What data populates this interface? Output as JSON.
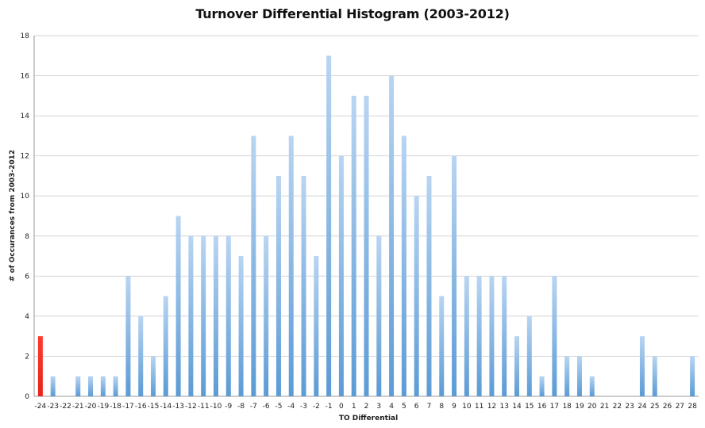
{
  "chart_data": {
    "type": "bar",
    "title": "Turnover Differential Histogram (2003-2012)",
    "xlabel": "TO Differential",
    "ylabel": "# of Occurances from 2003-2012",
    "ylim": [
      0,
      18
    ],
    "yticks": [
      0,
      2,
      4,
      6,
      8,
      10,
      12,
      14,
      16,
      18
    ],
    "grid": true,
    "legend": "none",
    "categories": [
      "-24",
      "-23",
      "-22",
      "-21",
      "-20",
      "-19",
      "-18",
      "-17",
      "-16",
      "-15",
      "-14",
      "-13",
      "-12",
      "-11",
      "-10",
      "-9",
      "-8",
      "-7",
      "-6",
      "-5",
      "-4",
      "-3",
      "-2",
      "-1",
      "0",
      "1",
      "2",
      "3",
      "4",
      "5",
      "6",
      "7",
      "8",
      "9",
      "10",
      "11",
      "12",
      "13",
      "14",
      "15",
      "16",
      "17",
      "18",
      "19",
      "20",
      "21",
      "22",
      "23",
      "24",
      "25",
      "26",
      "27",
      "28"
    ],
    "values": [
      3,
      1,
      0,
      1,
      1,
      1,
      1,
      6,
      4,
      2,
      5,
      9,
      8,
      8,
      8,
      8,
      7,
      13,
      8,
      11,
      13,
      11,
      7,
      17,
      12,
      15,
      15,
      8,
      16,
      13,
      10,
      11,
      5,
      12,
      6,
      6,
      6,
      6,
      3,
      4,
      1,
      6,
      2,
      2,
      1,
      0,
      0,
      0,
      3,
      2,
      0,
      0,
      2
    ],
    "highlight_category": "-24",
    "colors": {
      "bar": "#5b9bd5",
      "bar_light": "#b9d5f2",
      "highlight": "#e8251c",
      "grid": "#d4d4d4",
      "axis": "#9a9a9a"
    }
  }
}
